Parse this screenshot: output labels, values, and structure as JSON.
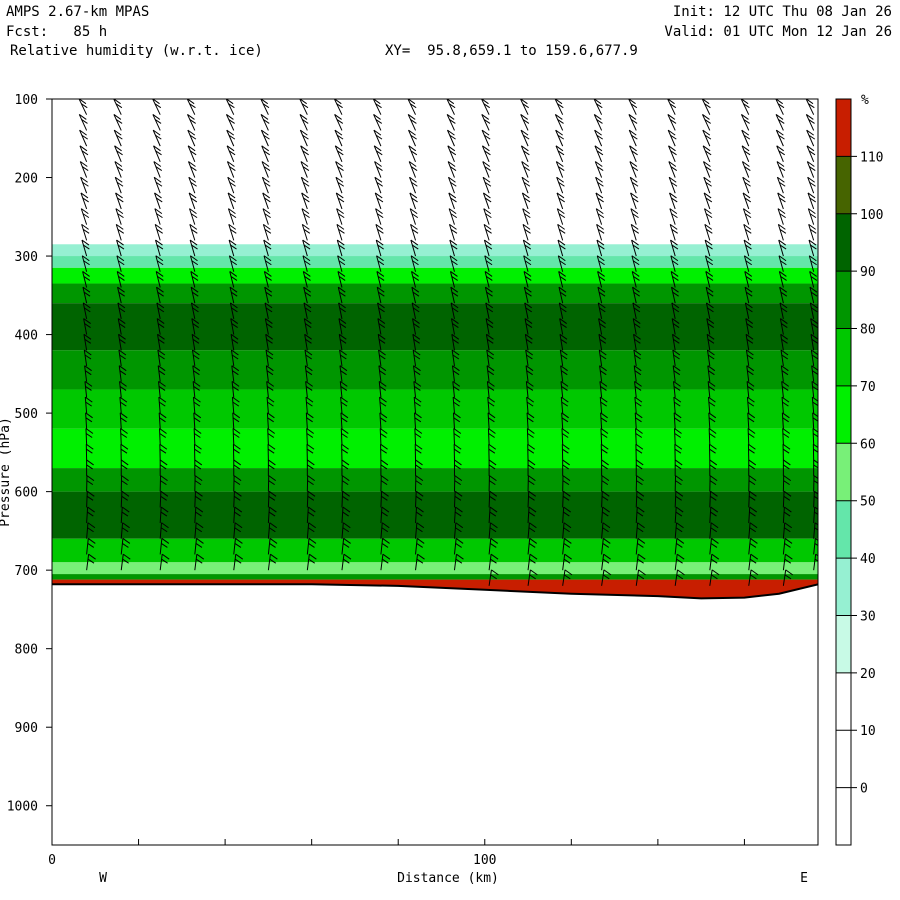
{
  "header": {
    "model": "AMPS 2.67-km MPAS",
    "forecast": "Fcst:   85 h",
    "field": "Relative humidity (w.r.t. ice)",
    "xy": "XY=  95.8,659.1 to 159.6,677.9",
    "init": "Init: 12 UTC Thu 08 Jan 26",
    "valid": "Valid: 01 UTC Mon 12 Jan 26"
  },
  "chart_data": {
    "type": "heatmap",
    "title": "Relative humidity (w.r.t. ice)",
    "xlabel": "Distance (km)",
    "ylabel": "Pressure (hPa)",
    "xlim": [
      0,
      177
    ],
    "ylim": [
      1050,
      100
    ],
    "x_ticks": [
      0,
      100
    ],
    "y_ticks": [
      100,
      200,
      300,
      400,
      500,
      600,
      700,
      800,
      900,
      1000
    ],
    "x_end_labels": {
      "left": "W",
      "right": "E"
    },
    "colorbar": {
      "unit": "%",
      "levels": [
        0,
        10,
        20,
        30,
        40,
        50,
        60,
        70,
        80,
        90,
        100,
        110
      ],
      "colors": [
        "#ffffff",
        "#ffffff",
        "#ffffff",
        "#c8fae6",
        "#96f0d2",
        "#64e6aa",
        "#78f078",
        "#00f000",
        "#00c800",
        "#009600",
        "#006400",
        "#466400",
        "#c81e00"
      ]
    },
    "surface_pressure": {
      "x": [
        0,
        20,
        40,
        60,
        80,
        100,
        120,
        140,
        150,
        160,
        168,
        177
      ],
      "p": [
        718,
        718,
        718,
        718,
        720,
        725,
        730,
        733,
        736,
        735,
        730,
        718
      ]
    },
    "layers": [
      {
        "top": 285,
        "bottom": 300,
        "rh": 35
      },
      {
        "top": 300,
        "bottom": 315,
        "rh": 45
      },
      {
        "top": 315,
        "bottom": 335,
        "rh": 60
      },
      {
        "top": 335,
        "bottom": 360,
        "rh": 80
      },
      {
        "top": 360,
        "bottom": 420,
        "rh": 95
      },
      {
        "top": 420,
        "bottom": 470,
        "rh": 80
      },
      {
        "top": 470,
        "bottom": 520,
        "rh": 75
      },
      {
        "top": 520,
        "bottom": 570,
        "rh": 65
      },
      {
        "top": 570,
        "bottom": 600,
        "rh": 80
      },
      {
        "top": 600,
        "bottom": 660,
        "rh": 95
      },
      {
        "top": 660,
        "bottom": 690,
        "rh": 75
      },
      {
        "top": 690,
        "bottom": 705,
        "rh": 55
      },
      {
        "top": 705,
        "bottom": 712,
        "rh": 85
      },
      {
        "top": 712,
        "bottom": 740,
        "rh": 115
      }
    ],
    "wind_barb_x": [
      8,
      16,
      25,
      33,
      42,
      50,
      59,
      67,
      76,
      84,
      93,
      101,
      110,
      118,
      127,
      135,
      144,
      152,
      161,
      169,
      176
    ]
  }
}
